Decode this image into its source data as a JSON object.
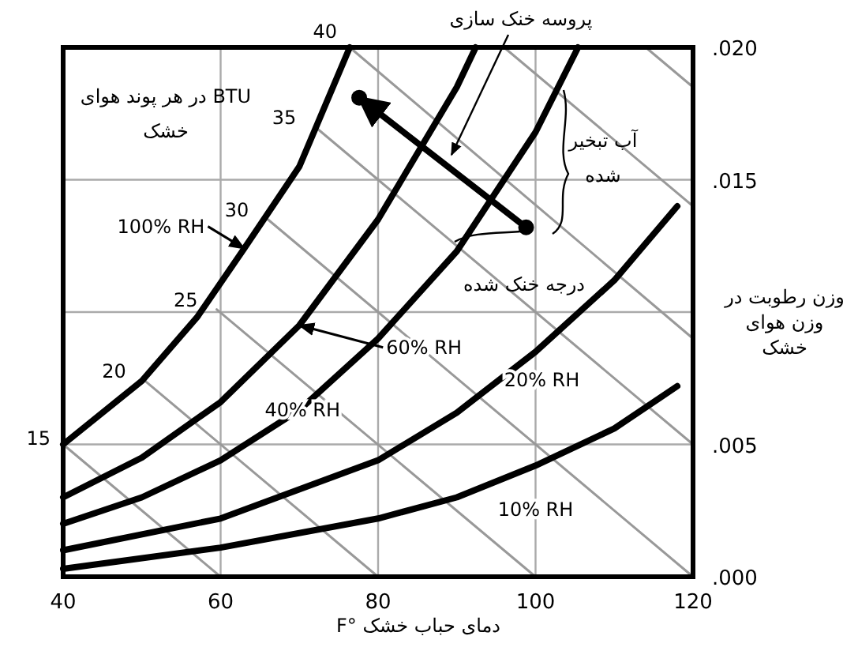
{
  "chart_data": {
    "type": "line",
    "xlabel": "دمای حباب خشک °F",
    "ylabel": "وزن رطوبت در\nوزن هوای\nخشک",
    "xlim": [
      40,
      120
    ],
    "ylim": [
      0,
      0.02
    ],
    "xticks": [
      40,
      60,
      80,
      100,
      120
    ],
    "yticks": [
      {
        "value": 0,
        "label": ".000"
      },
      {
        "value": 0.005,
        "label": ".005"
      },
      {
        "value": 0.01,
        "label": null
      },
      {
        "value": 0.015,
        "label": ".015"
      },
      {
        "value": 0.02,
        "label": ".020"
      }
    ],
    "grid": true,
    "series": [
      {
        "name": "15",
        "color": "#999999",
        "x": [
          40,
          60
        ],
        "values": [
          0.005,
          0
        ]
      },
      {
        "name": "20",
        "color": "#999999",
        "x": [
          50.4,
          80
        ],
        "values": [
          0.0074,
          0
        ]
      },
      {
        "name": "25",
        "color": "#999999",
        "x": [
          59.5,
          100
        ],
        "values": [
          0.0101,
          0
        ]
      },
      {
        "name": "30",
        "color": "#999999",
        "x": [
          66,
          120
        ],
        "values": [
          0.0135,
          0
        ]
      },
      {
        "name": "35",
        "color": "#999999",
        "x": [
          72,
          120
        ],
        "values": [
          0.017,
          0.005
        ]
      },
      {
        "name": "40",
        "color": "#999999",
        "x": [
          76.4,
          120
        ],
        "values": [
          0.02,
          0.009
        ]
      },
      {
        "color": "#999999",
        "x": [
          96,
          120
        ],
        "values": [
          0.02,
          0.014
        ]
      },
      {
        "color": "#999999",
        "x": [
          114,
          120
        ],
        "values": [
          0.02,
          0.0185
        ]
      },
      {
        "name": "100% RH",
        "color": "#000000",
        "x": [
          40,
          50,
          57,
          63,
          70,
          76.4
        ],
        "values": [
          0.005,
          0.0074,
          0.0098,
          0.0124,
          0.0155,
          0.02
        ]
      },
      {
        "name": "60% RH",
        "color": "#000000",
        "x": [
          40,
          50,
          60,
          70,
          80,
          90,
          92.4
        ],
        "values": [
          0.003,
          0.0045,
          0.0066,
          0.0095,
          0.0135,
          0.0185,
          0.02
        ]
      },
      {
        "name": "40% RH",
        "color": "#000000",
        "x": [
          40,
          50,
          60,
          70,
          80,
          90,
          100,
          105.4
        ],
        "values": [
          0.002,
          0.003,
          0.0044,
          0.0063,
          0.009,
          0.0123,
          0.0168,
          0.02
        ]
      },
      {
        "name": "20% RH",
        "color": "#000000",
        "x": [
          40,
          60,
          80,
          90,
          100,
          110,
          118
        ],
        "values": [
          0.001,
          0.0022,
          0.0044,
          0.0062,
          0.0085,
          0.0112,
          0.014
        ]
      },
      {
        "name": "10% RH",
        "color": "#000000",
        "x": [
          40,
          60,
          80,
          90,
          100,
          110,
          118
        ],
        "values": [
          0.0003,
          0.0011,
          0.0022,
          0.003,
          0.0042,
          0.0056,
          0.0072
        ]
      },
      {
        "color": "#000000",
        "marker": "circle",
        "x": [
          98.8,
          77.6
        ],
        "values": [
          0.0132,
          0.0181
        ]
      }
    ],
    "annotations": [
      "پروسه خنک سازی",
      "BTU در هر پوند هوای\nخشک",
      "آب تبخیر\nشده",
      "درجه خنک شده"
    ]
  }
}
